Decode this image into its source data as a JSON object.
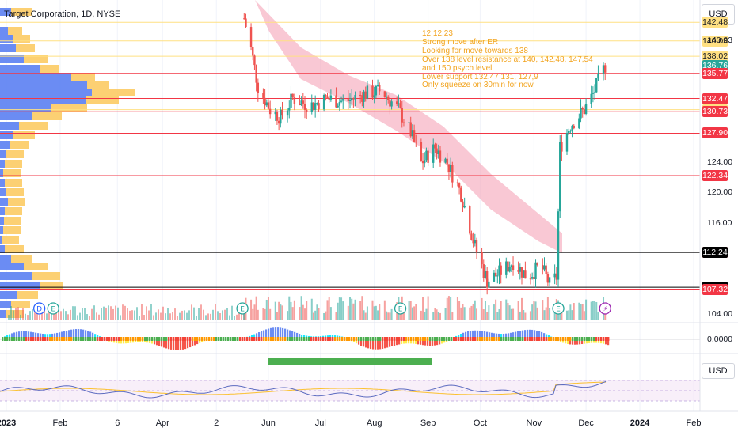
{
  "header": {
    "symbol": "Target Corporation, 1D, NYSE",
    "currency": "USD",
    "currency_rsi": "USD"
  },
  "annotation": {
    "lines": [
      "12.12.23",
      "Strong move after ER",
      "Looking for move towards 138",
      "Over 138 level resistance at 140, 142,48, 147,54",
      "and 150 psych level",
      "Lower support 132,47 131, 127,9",
      "Only squeeze on 30min for now"
    ]
  },
  "indicator": {
    "zero_label": "0.0000"
  },
  "colors": {
    "up": "#26a69a",
    "down": "#ef5350",
    "level_line": "#f23645",
    "yellow_line": "#ffe082",
    "ribbon": "#f5a3b8",
    "vp_blue": "#5b7ff2",
    "vp_yellow": "#fbc85a"
  },
  "chart_data": {
    "type": "candlestick",
    "symbol": "Target Corporation",
    "timeframe": "1D",
    "exchange": "NYSE",
    "y_unit": "USD",
    "ylim": [
      103,
      145
    ],
    "y_ticks": [
      104.0,
      116.0,
      120.0,
      124.0,
      140.03
    ],
    "x_ticks": [
      {
        "label": "2023",
        "bold": true,
        "date": "2023-01-01"
      },
      {
        "label": "Feb",
        "date": "2023-02-01"
      },
      {
        "label": "6",
        "date": "2023-03-06"
      },
      {
        "label": "Apr",
        "date": "2023-04-01"
      },
      {
        "label": "2",
        "date": "2023-05-02"
      },
      {
        "label": "Jun",
        "date": "2023-06-01"
      },
      {
        "label": "Jul",
        "date": "2023-07-01"
      },
      {
        "label": "Aug",
        "date": "2023-08-01"
      },
      {
        "label": "Sep",
        "date": "2023-09-01"
      },
      {
        "label": "Oct",
        "date": "2023-10-01"
      },
      {
        "label": "Nov",
        "date": "2023-11-01"
      },
      {
        "label": "Dec",
        "date": "2023-12-01"
      },
      {
        "label": "2024",
        "bold": true,
        "date": "2024-01-01"
      },
      {
        "label": "Feb",
        "date": "2024-02-01"
      }
    ],
    "price_levels": [
      {
        "price": 142.48,
        "label": "142.48",
        "style": "yellow"
      },
      {
        "price": 140.03,
        "label": "140.03",
        "style": "yellow"
      },
      {
        "price": 138.02,
        "label": "138.02",
        "style": "yellow"
      },
      {
        "price": 136.76,
        "label": "136.76",
        "style": "current"
      },
      {
        "price": 135.77,
        "label": "135.77",
        "style": "red"
      },
      {
        "price": 132.47,
        "label": "132.47",
        "style": "red"
      },
      {
        "price": 131.01,
        "label": "131.01",
        "style": "yellow"
      },
      {
        "price": 130.73,
        "label": "130.73",
        "style": "red"
      },
      {
        "price": 127.9,
        "label": "127.90",
        "style": "red"
      },
      {
        "price": 122.34,
        "label": "122.34",
        "style": "red"
      },
      {
        "price": 112.28,
        "label": "112.28",
        "style": "red"
      },
      {
        "price": 112.24,
        "label": "112.24",
        "style": "black"
      },
      {
        "price": 107.66,
        "label": "107.66",
        "style": "black"
      },
      {
        "price": 107.32,
        "label": "107.32",
        "style": "red"
      }
    ],
    "price_path": [
      {
        "date": "2023-05-18",
        "price": 143.0
      },
      {
        "date": "2023-05-22",
        "price": 139.0
      },
      {
        "date": "2023-05-26",
        "price": 134.0
      },
      {
        "date": "2023-06-02",
        "price": 131.0
      },
      {
        "date": "2023-06-08",
        "price": 130.0
      },
      {
        "date": "2023-06-15",
        "price": 132.5
      },
      {
        "date": "2023-06-25",
        "price": 131.5
      },
      {
        "date": "2023-07-05",
        "price": 132.5
      },
      {
        "date": "2023-07-15",
        "price": 132.0
      },
      {
        "date": "2023-07-25",
        "price": 133.0
      },
      {
        "date": "2023-08-05",
        "price": 133.5
      },
      {
        "date": "2023-08-15",
        "price": 131.0
      },
      {
        "date": "2023-08-22",
        "price": 128.0
      },
      {
        "date": "2023-08-28",
        "price": 124.0
      },
      {
        "date": "2023-09-05",
        "price": 126.0
      },
      {
        "date": "2023-09-12",
        "price": 124.0
      },
      {
        "date": "2023-09-20",
        "price": 120.0
      },
      {
        "date": "2023-09-28",
        "price": 113.0
      },
      {
        "date": "2023-10-05",
        "price": 108.5
      },
      {
        "date": "2023-10-12",
        "price": 109.5
      },
      {
        "date": "2023-10-20",
        "price": 111.0
      },
      {
        "date": "2023-10-28",
        "price": 109.0
      },
      {
        "date": "2023-11-05",
        "price": 110.5
      },
      {
        "date": "2023-11-10",
        "price": 108.0
      },
      {
        "date": "2023-11-14",
        "price": 109.0
      },
      {
        "date": "2023-11-16",
        "price": 126.0
      },
      {
        "date": "2023-11-22",
        "price": 129.0
      },
      {
        "date": "2023-11-30",
        "price": 131.0
      },
      {
        "date": "2023-12-05",
        "price": 133.0
      },
      {
        "date": "2023-12-12",
        "price": 136.76
      }
    ],
    "events": [
      {
        "date": "2023-01-20",
        "type": "dividend",
        "label": "D"
      },
      {
        "date": "2023-01-28",
        "type": "earnings",
        "label": "E"
      },
      {
        "date": "2023-05-17",
        "type": "earnings",
        "label": "E"
      },
      {
        "date": "2023-08-16",
        "type": "earnings",
        "label": "E"
      },
      {
        "date": "2023-11-15",
        "type": "earnings",
        "label": "E"
      },
      {
        "date": "2023-12-12",
        "type": "flash",
        "label": "⚡"
      }
    ]
  }
}
